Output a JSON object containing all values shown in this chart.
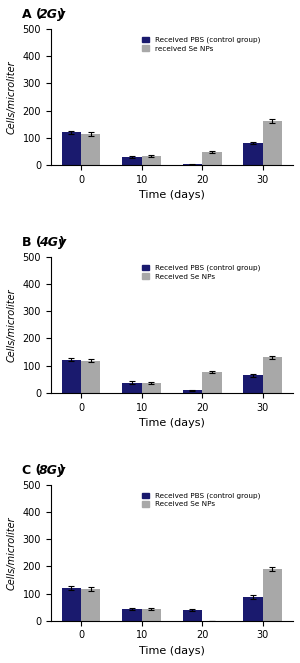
{
  "panels": [
    {
      "title_bold": "A (",
      "title_italic": "2Gy",
      "title_end": ")",
      "legend_pbs": "Received PBS (control group)",
      "legend_se": "received Se NPs",
      "days": [
        0,
        10,
        20,
        30
      ],
      "pbs_values": [
        120,
        28,
        2,
        80
      ],
      "se_values": [
        115,
        33,
        48,
        162
      ],
      "pbs_err": [
        6,
        3,
        1,
        5
      ],
      "se_err": [
        7,
        4,
        4,
        7
      ],
      "ylim": [
        0,
        500
      ],
      "yticks": [
        0,
        100,
        200,
        300,
        400,
        500
      ]
    },
    {
      "title_bold": "B (",
      "title_italic": "4Gy",
      "title_end": ")",
      "legend_pbs": "Received PBS (control group)",
      "legend_se": "Received Se NPs",
      "days": [
        0,
        10,
        20,
        30
      ],
      "pbs_values": [
        122,
        38,
        10,
        65
      ],
      "se_values": [
        118,
        37,
        77,
        130
      ],
      "pbs_err": [
        6,
        4,
        2,
        5
      ],
      "se_err": [
        6,
        4,
        5,
        6
      ],
      "ylim": [
        0,
        500
      ],
      "yticks": [
        0,
        100,
        200,
        300,
        400,
        500
      ]
    },
    {
      "title_bold": "C (",
      "title_italic": "8Gy",
      "title_end": ")",
      "legend_pbs": "Received PBS (control group)",
      "legend_se": "Received Se NPs",
      "days": [
        0,
        10,
        20,
        30
      ],
      "pbs_values": [
        120,
        42,
        40,
        87
      ],
      "se_values": [
        117,
        42,
        0,
        190
      ],
      "pbs_err": [
        7,
        4,
        4,
        6
      ],
      "se_err": [
        6,
        4,
        0,
        7
      ],
      "ylim": [
        0,
        500
      ],
      "yticks": [
        0,
        100,
        200,
        300,
        400,
        500
      ]
    }
  ],
  "pbs_color": "#1a1a6e",
  "se_color": "#a8a8a8",
  "bar_width": 0.32,
  "xlabel": "Time (days)",
  "ylabel": "Cells/microliter",
  "figsize": [
    3.0,
    6.63
  ],
  "dpi": 100
}
